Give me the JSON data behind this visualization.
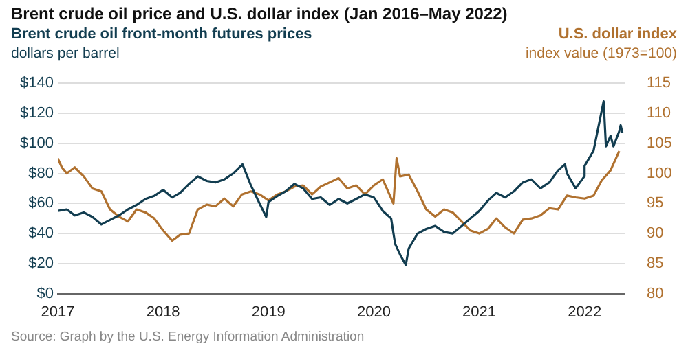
{
  "chart_data": {
    "type": "line",
    "title": "Brent crude oil price and U.S. dollar index (Jan 2016–May 2022)",
    "ylabel": "dollars per barrel",
    "y2label": "index value (1973=100)",
    "annotations": [
      "Source: Graph by the U.S. Energy Information Administration"
    ],
    "xlim": [
      "2017-01-01",
      "2022-05-20"
    ],
    "xticks": [
      "2017",
      "2018",
      "2019",
      "2020",
      "2021",
      "2022"
    ],
    "ylim": [
      0,
      140
    ],
    "yticks": [
      {
        "value": 0,
        "label": "$0"
      },
      {
        "value": 20,
        "label": "$20"
      },
      {
        "value": 40,
        "label": "$40"
      },
      {
        "value": 60,
        "label": "$60"
      },
      {
        "value": 80,
        "label": "$80"
      },
      {
        "value": 100,
        "label": "$100"
      },
      {
        "value": 120,
        "label": "$120"
      },
      {
        "value": 140,
        "label": "$140"
      }
    ],
    "y2lim": [
      80,
      115
    ],
    "y2ticks": [
      80,
      85,
      90,
      95,
      100,
      105,
      110,
      115
    ],
    "grid": "y",
    "legend": false,
    "marker": "none",
    "line_style": "solid",
    "series": [
      {
        "name": "Brent crude oil front-month futures prices",
        "color": "#123d50",
        "axis": "y",
        "x": [
          "2017-01",
          "2017-02",
          "2017-03",
          "2017-04",
          "2017-05",
          "2017-06",
          "2017-07",
          "2017-08",
          "2017-09",
          "2017-10",
          "2017-11",
          "2017-12",
          "2018-01",
          "2018-02",
          "2018-03",
          "2018-04",
          "2018-05",
          "2018-06",
          "2018-07",
          "2018-08",
          "2018-09",
          "2018-10-03",
          "2018-11",
          "2018-12",
          "2018-12-24",
          "2019-01",
          "2019-02",
          "2019-03",
          "2019-04",
          "2019-05",
          "2019-06",
          "2019-07",
          "2019-08",
          "2019-09",
          "2019-10",
          "2019-11",
          "2019-12",
          "2020-01",
          "2020-02",
          "2020-03-01",
          "2020-03-15",
          "2020-04-01",
          "2020-04-21",
          "2020-05",
          "2020-06",
          "2020-07",
          "2020-08",
          "2020-09",
          "2020-10",
          "2020-11",
          "2020-12",
          "2021-01",
          "2021-02",
          "2021-03",
          "2021-04",
          "2021-05",
          "2021-06",
          "2021-07",
          "2021-08",
          "2021-09",
          "2021-10",
          "2021-10-25",
          "2021-11",
          "2021-12",
          "2021-12-31",
          "2022-01",
          "2022-02",
          "2022-03-08",
          "2022-03-16",
          "2022-04",
          "2022-04-11",
          "2022-05",
          "2022-05-06",
          "2022-05-12"
        ],
        "values": [
          55,
          56,
          52,
          54,
          51,
          46,
          49,
          52,
          56,
          59,
          63,
          65,
          69,
          64,
          67,
          73,
          78,
          75,
          74,
          76,
          80,
          86,
          72,
          60,
          51,
          61,
          65,
          68,
          73,
          70,
          63,
          64,
          59,
          63,
          60,
          63,
          66,
          64,
          55,
          50,
          33,
          26,
          19,
          30,
          40,
          43,
          45,
          41,
          40,
          45,
          50,
          55,
          62,
          67,
          64,
          68,
          74,
          76,
          70,
          74,
          82,
          86,
          80,
          70,
          78,
          85,
          95,
          128,
          98,
          105,
          98,
          108,
          112,
          107
        ]
      },
      {
        "name": "U.S. dollar index",
        "color": "#b0712f",
        "axis": "y2",
        "x": [
          "2017-01",
          "2017-01-15",
          "2017-02",
          "2017-03",
          "2017-04",
          "2017-05",
          "2017-06",
          "2017-07",
          "2017-08",
          "2017-09",
          "2017-10",
          "2017-11",
          "2017-12",
          "2018-01",
          "2018-02",
          "2018-03",
          "2018-04",
          "2018-05",
          "2018-06",
          "2018-07",
          "2018-08",
          "2018-09",
          "2018-10",
          "2018-11",
          "2018-12",
          "2019-01",
          "2019-02",
          "2019-03",
          "2019-04",
          "2019-05",
          "2019-06",
          "2019-07",
          "2019-08",
          "2019-09",
          "2019-10",
          "2019-11",
          "2019-12",
          "2020-01",
          "2020-02",
          "2020-03-09",
          "2020-03-20",
          "2020-04",
          "2020-05",
          "2020-06",
          "2020-07",
          "2020-08",
          "2020-09",
          "2020-10",
          "2020-11",
          "2020-12",
          "2021-01",
          "2021-02",
          "2021-03",
          "2021-04",
          "2021-05",
          "2021-06",
          "2021-07",
          "2021-08",
          "2021-09",
          "2021-10",
          "2021-11",
          "2021-12",
          "2022-01",
          "2022-02",
          "2022-03",
          "2022-04",
          "2022-05"
        ],
        "values": [
          102.5,
          101,
          100,
          101,
          99.5,
          97.5,
          97,
          94,
          92.8,
          92,
          94,
          93.5,
          92.5,
          90.5,
          88.8,
          89.8,
          90,
          94,
          94.8,
          94.5,
          95.8,
          94.5,
          96.5,
          97,
          96.5,
          95.5,
          96.5,
          97,
          97.8,
          98,
          96.5,
          97.8,
          98.5,
          99.2,
          97.5,
          98,
          96.5,
          98,
          99,
          95,
          102.5,
          99.5,
          99.8,
          97,
          94,
          92.8,
          94,
          93.5,
          92,
          90.5,
          90,
          90.8,
          92.5,
          91,
          90,
          92.3,
          92.5,
          93,
          94.2,
          94,
          96.3,
          96,
          95.8,
          96.3,
          98.8,
          100.5,
          103.7
        ]
      }
    ]
  }
}
